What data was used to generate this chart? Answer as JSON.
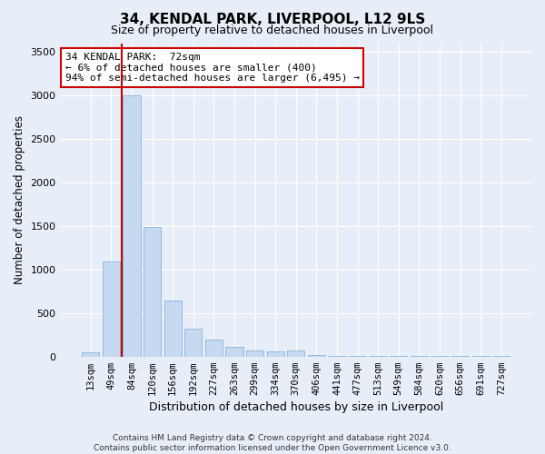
{
  "title": "34, KENDAL PARK, LIVERPOOL, L12 9LS",
  "subtitle": "Size of property relative to detached houses in Liverpool",
  "xlabel": "Distribution of detached houses by size in Liverpool",
  "ylabel": "Number of detached properties",
  "footer_line1": "Contains HM Land Registry data © Crown copyright and database right 2024.",
  "footer_line2": "Contains public sector information licensed under the Open Government Licence v3.0.",
  "bar_labels": [
    "13sqm",
    "49sqm",
    "84sqm",
    "120sqm",
    "156sqm",
    "192sqm",
    "227sqm",
    "263sqm",
    "299sqm",
    "334sqm",
    "370sqm",
    "406sqm",
    "441sqm",
    "477sqm",
    "513sqm",
    "549sqm",
    "584sqm",
    "620sqm",
    "656sqm",
    "691sqm",
    "727sqm"
  ],
  "bar_values": [
    50,
    1090,
    3000,
    1490,
    640,
    320,
    190,
    110,
    75,
    55,
    75,
    20,
    5,
    5,
    5,
    5,
    5,
    5,
    5,
    5,
    5
  ],
  "bar_color": "#c5d9f1",
  "bar_edge_color": "#8ab4d9",
  "bg_color": "#e8eef8",
  "plot_bg_color": "#e8eef8",
  "grid_color": "#ffffff",
  "red_line_x": 1.5,
  "ylim": [
    0,
    3600
  ],
  "yticks": [
    0,
    500,
    1000,
    1500,
    2000,
    2500,
    3000,
    3500
  ],
  "annotation_title": "34 KENDAL PARK:  72sqm",
  "annotation_line2": "← 6% of detached houses are smaller (400)",
  "annotation_line3": "94% of semi-detached houses are larger (6,495) →",
  "annotation_box_color": "#ffffff",
  "annotation_box_edge": "#cc0000",
  "red_line_color": "#cc0000",
  "title_fontsize": 11,
  "subtitle_fontsize": 9
}
